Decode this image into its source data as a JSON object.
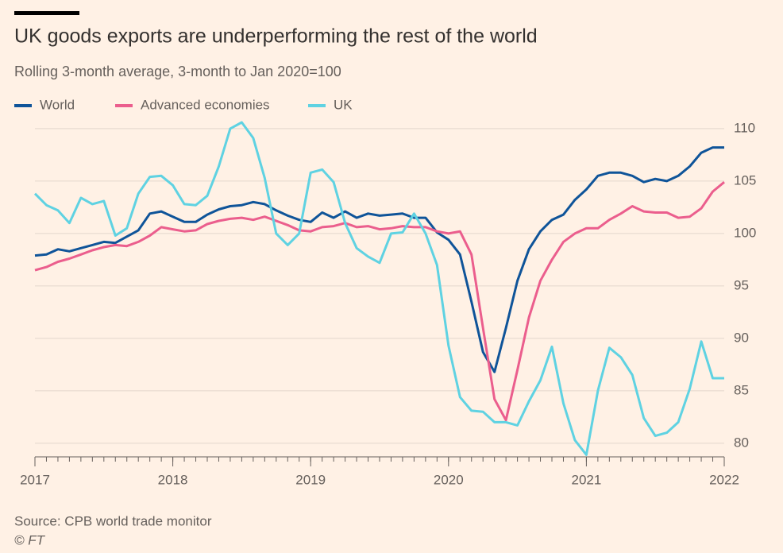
{
  "chart_data": {
    "type": "line",
    "title": "UK goods exports are underperforming the rest of the world",
    "subtitle": "Rolling 3-month average, 3-month to Jan 2020=100",
    "source": "Source: CPB world trade monitor",
    "credit": "© FT",
    "x": [
      "2017-01",
      "2017-02",
      "2017-03",
      "2017-04",
      "2017-05",
      "2017-06",
      "2017-07",
      "2017-08",
      "2017-09",
      "2017-10",
      "2017-11",
      "2017-12",
      "2018-01",
      "2018-02",
      "2018-03",
      "2018-04",
      "2018-05",
      "2018-06",
      "2018-07",
      "2018-08",
      "2018-09",
      "2018-10",
      "2018-11",
      "2018-12",
      "2019-01",
      "2019-02",
      "2019-03",
      "2019-04",
      "2019-05",
      "2019-06",
      "2019-07",
      "2019-08",
      "2019-09",
      "2019-10",
      "2019-11",
      "2019-12",
      "2020-01",
      "2020-02",
      "2020-03",
      "2020-04",
      "2020-05",
      "2020-06",
      "2020-07",
      "2020-08",
      "2020-09",
      "2020-10",
      "2020-11",
      "2020-12",
      "2021-01",
      "2021-02",
      "2021-03",
      "2021-04",
      "2021-05",
      "2021-06",
      "2021-07",
      "2021-08",
      "2021-09",
      "2021-10",
      "2021-11",
      "2021-12",
      "2022-01"
    ],
    "xticks": [
      {
        "value": "2017-01",
        "label": "2017"
      },
      {
        "value": "2018-01",
        "label": "2018"
      },
      {
        "value": "2019-01",
        "label": "2019"
      },
      {
        "value": "2020-01",
        "label": "2020"
      },
      {
        "value": "2021-01",
        "label": "2021"
      },
      {
        "value": "2022-01",
        "label": "2022"
      }
    ],
    "ylim": [
      78.7,
      110.9
    ],
    "yticks": [
      80,
      85,
      90,
      95,
      100,
      105,
      110
    ],
    "grid": true,
    "legend": "top-left",
    "series": [
      {
        "name": "World",
        "color": "#0f5499",
        "values": [
          97.9,
          98.0,
          98.5,
          98.3,
          98.6,
          98.9,
          99.2,
          99.1,
          99.7,
          100.3,
          101.9,
          102.1,
          101.6,
          101.1,
          101.1,
          101.8,
          102.3,
          102.6,
          102.7,
          103.0,
          102.8,
          102.2,
          101.7,
          101.3,
          101.1,
          102.0,
          101.5,
          102.1,
          101.5,
          101.9,
          101.7,
          101.8,
          101.9,
          101.5,
          101.5,
          100.1,
          99.4,
          98.0,
          93.5,
          88.7,
          86.8,
          91.0,
          95.5,
          98.5,
          100.2,
          101.3,
          101.8,
          103.2,
          104.2,
          105.5,
          105.8,
          105.8,
          105.5,
          104.9,
          105.2,
          105.0,
          105.5,
          106.4,
          107.7,
          108.2,
          108.2
        ]
      },
      {
        "name": "Advanced economies",
        "color": "#eb5e8d",
        "values": [
          96.5,
          96.8,
          97.3,
          97.6,
          98.0,
          98.4,
          98.7,
          98.9,
          98.8,
          99.2,
          99.8,
          100.6,
          100.4,
          100.2,
          100.3,
          100.9,
          101.2,
          101.4,
          101.5,
          101.3,
          101.6,
          101.2,
          100.8,
          100.3,
          100.2,
          100.6,
          100.7,
          101.0,
          100.6,
          100.7,
          100.4,
          100.5,
          100.7,
          100.6,
          100.6,
          100.2,
          100.0,
          100.2,
          98.0,
          91.0,
          84.2,
          82.2,
          87.0,
          92.0,
          95.5,
          97.5,
          99.2,
          100.0,
          100.5,
          100.5,
          101.3,
          101.9,
          102.6,
          102.1,
          102.0,
          102.0,
          101.5,
          101.6,
          102.4,
          104.0,
          104.9
        ]
      },
      {
        "name": "UK",
        "color": "#5fd2e2",
        "values": [
          103.8,
          102.7,
          102.2,
          101.0,
          103.4,
          102.8,
          103.1,
          99.8,
          100.5,
          103.8,
          105.4,
          105.5,
          104.6,
          102.8,
          102.7,
          103.6,
          106.4,
          110.0,
          110.6,
          109.1,
          105.3,
          100.0,
          98.9,
          100.0,
          105.8,
          106.1,
          104.9,
          101.0,
          98.6,
          97.8,
          97.2,
          100.0,
          100.1,
          101.9,
          100.0,
          97.0,
          89.3,
          84.4,
          83.1,
          83.0,
          82.0,
          82.0,
          81.7,
          84.0,
          86.0,
          89.2,
          83.8,
          80.3,
          78.9,
          85.0,
          89.1,
          88.2,
          86.5,
          82.4,
          80.7,
          81.0,
          82.0,
          85.2,
          89.7,
          86.2,
          86.2
        ]
      }
    ]
  }
}
